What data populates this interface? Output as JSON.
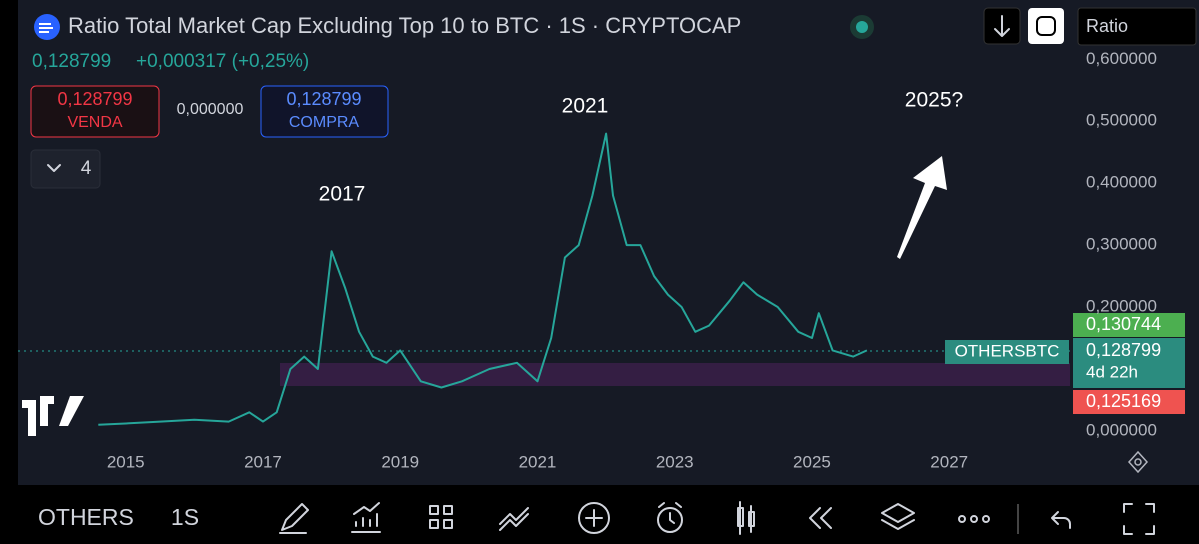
{
  "header": {
    "title": "Ratio Total Market Cap Excluding Top 10 to BTC · 1S · CRYPTOCAP",
    "price": "0,128799",
    "change": "+0,000317 (+0,25%)"
  },
  "trade": {
    "sell_price": "0,128799",
    "sell_label": "VENDA",
    "spread": "0,000000",
    "buy_price": "0,128799",
    "buy_label": "COMPRA"
  },
  "indicators_count": "4",
  "search": "Ratio",
  "price_labels": {
    "high": "0,130744",
    "symbol": "OTHERSBTC",
    "last": "0,128799",
    "countdown": "4d 22h",
    "low": "0,125169"
  },
  "toolbar": {
    "symbol": "OTHERS",
    "interval": "1S"
  },
  "chart_data": {
    "type": "line",
    "color": "#26a69a",
    "annotations": [
      "2017",
      "2021",
      "2025?"
    ],
    "x": [
      2014.6,
      2015.0,
      2015.5,
      2016.0,
      2016.5,
      2016.8,
      2017.0,
      2017.2,
      2017.4,
      2017.6,
      2017.8,
      2018.0,
      2018.2,
      2018.4,
      2018.6,
      2018.8,
      2019.0,
      2019.3,
      2019.6,
      2019.9,
      2020.3,
      2020.7,
      2021.0,
      2021.2,
      2021.4,
      2021.6,
      2021.8,
      2022.0,
      2022.1,
      2022.3,
      2022.5,
      2022.7,
      2022.9,
      2023.1,
      2023.3,
      2023.5,
      2023.8,
      2024.0,
      2024.2,
      2024.5,
      2024.8,
      2025.0,
      2025.1,
      2025.3,
      2025.6,
      2025.8
    ],
    "values": [
      0.01,
      0.012,
      0.015,
      0.018,
      0.015,
      0.03,
      0.015,
      0.03,
      0.1,
      0.12,
      0.1,
      0.29,
      0.23,
      0.16,
      0.12,
      0.11,
      0.13,
      0.08,
      0.07,
      0.08,
      0.1,
      0.11,
      0.08,
      0.15,
      0.28,
      0.3,
      0.38,
      0.48,
      0.38,
      0.3,
      0.3,
      0.25,
      0.22,
      0.2,
      0.16,
      0.17,
      0.21,
      0.24,
      0.22,
      0.2,
      0.16,
      0.15,
      0.19,
      0.13,
      0.12,
      0.13
    ],
    "xlim": [
      2013.43,
      2028.76
    ],
    "xticks": [
      2015,
      2017,
      2019,
      2021,
      2023,
      2025,
      2027
    ],
    "ylim": [
      -0.026,
      0.615
    ],
    "yticks": [
      {
        "value": 0,
        "label": "0,000000"
      },
      {
        "value": 0.2,
        "label": "0,200000"
      },
      {
        "value": 0.3,
        "label": "0,300000"
      },
      {
        "value": 0.4,
        "label": "0,400000"
      },
      {
        "value": 0.5,
        "label": "0,500000"
      },
      {
        "value": 0.6,
        "label": "0,600000"
      }
    ]
  }
}
